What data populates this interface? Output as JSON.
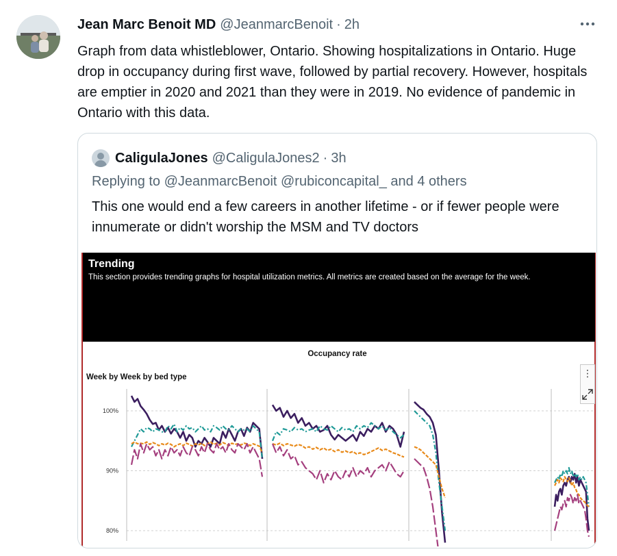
{
  "tweet": {
    "display_name": "Jean Marc Benoit MD",
    "handle": "@JeanmarcBenoit",
    "separator": "·",
    "time": "2h",
    "more_label": "•••",
    "text": "Graph from data whistleblower, Ontario. Showing hospitalizations in Ontario. Huge drop in occupancy during first wave, followed by partial recovery. However, hospitals are emptier in 2020 and 2021 than they were in 2019. No evidence of pandemic in Ontario with this data.",
    "avatar_icon": "profile-photo"
  },
  "quote": {
    "display_name": "CaligulaJones",
    "handle": "@CaligulaJones2",
    "separator": "·",
    "time": "3h",
    "replying_prefix": "Replying to ",
    "replying_to": "@JeanmarcBenoit @rubiconcapital_",
    "replying_suffix": " and 4 others",
    "text": "This one would end a few careers in another lifetime - or if fewer people were innumerate or didn't worship the MSM and TV doctors",
    "avatar_icon": "default-avatar-icon"
  },
  "media": {
    "banner_title": "Trending",
    "banner_desc": "This section provides trending graphs for hospital utilization metrics. All metrics are created based on the average for the week.",
    "chart_title": "Occupancy rate",
    "chart_subtitle": "Week by Week by bed type",
    "tool_kebab": "⋮",
    "expand_icon": "expand-icon"
  },
  "colors": {
    "series1": "#3b1e5f",
    "series2": "#1f9a97",
    "series3": "#e88a1a",
    "series4": "#a43f7e",
    "grid": "#cfcfcf"
  },
  "chart_data": {
    "type": "line",
    "title": "Occupancy rate",
    "subtitle": "Week by Week by bed type",
    "ytick_labels": [
      "100%",
      "90%",
      "80%"
    ],
    "yticks": [
      100,
      90,
      80
    ],
    "ylim": [
      78,
      103
    ],
    "panels": 4,
    "grid": true,
    "series": [
      {
        "color": "#3b1e5f",
        "panels": [
          [
            102.5,
            101.5,
            102,
            100.8,
            100.2,
            99.5,
            98.5,
            97.8,
            98,
            96.8,
            97.5,
            96.5,
            97.2,
            96.2,
            97,
            96.5,
            95.5,
            96.5,
            95,
            96,
            95.5,
            94,
            95,
            94.5,
            95.5,
            94.8,
            94,
            95.5,
            95,
            94.5,
            96.5,
            95.5,
            97,
            96,
            95,
            96.5,
            97,
            95.8,
            97.2,
            96.5,
            98,
            97.5,
            97,
            92
          ],
          [
            101,
            100,
            100.5,
            99,
            100,
            98.8,
            99.5,
            98,
            98.8,
            97.5,
            98,
            97,
            97.5,
            96.5,
            96.8,
            97.5,
            96,
            95.2,
            96,
            95.5,
            95,
            95.5,
            96,
            95,
            96.5,
            95.8,
            97,
            96.5,
            97.5,
            97,
            98,
            96.5,
            97.5,
            97,
            96,
            94,
            96.5
          ],
          [
            101.5,
            101,
            100.5,
            100.2,
            99.5,
            99,
            98,
            96,
            90,
            83,
            78
          ],
          [
            84,
            86,
            85,
            86.5,
            87,
            86,
            87.5,
            88,
            87.5,
            88.5,
            89,
            88,
            89,
            88.5,
            89.5,
            88,
            89,
            87.5,
            88.5,
            88,
            87.5,
            87,
            86.5,
            82,
            80
          ]
        ]
      },
      {
        "color": "#1f9a97",
        "panels": [
          [
            94,
            95,
            96,
            97,
            96.5,
            97.2,
            97,
            96.5,
            97,
            96.8,
            96.5,
            96.5,
            97.5,
            97,
            97.8,
            96.5,
            97.2,
            96.8,
            97.5,
            97,
            97.2,
            96.5,
            97,
            97.5,
            96.8,
            97,
            96.5,
            97.5,
            97.2,
            96.8,
            97.5,
            97,
            96.8,
            97.5,
            97,
            96.5,
            97,
            96.8,
            97,
            96.5,
            97.5,
            97,
            96.5,
            92
          ],
          [
            95,
            96.5,
            96,
            97,
            96.8,
            96.5,
            97.2,
            96.8,
            97,
            96.5,
            96.8,
            97,
            96.5,
            97.5,
            97,
            96.8,
            97.5,
            97,
            96.5,
            97.2,
            96.8,
            97,
            96.5,
            97.5,
            97,
            97.5,
            97.2,
            98,
            97.5,
            97,
            97.5,
            96.8,
            97.2,
            96.5,
            96,
            95.5,
            96
          ],
          [
            100,
            99.5,
            99,
            98.5,
            98,
            97.5,
            96,
            93,
            88,
            84,
            80
          ],
          [
            88,
            88.5,
            89,
            88.5,
            89.5,
            89,
            90,
            89.5,
            90,
            89.5,
            90.5,
            89.5,
            90,
            89,
            89.5,
            89,
            89.5,
            88.5,
            89,
            88.5,
            89,
            88.5,
            88,
            86,
            84
          ]
        ]
      },
      {
        "color": "#e88a1a",
        "panels": [
          [
            94.5,
            94.8,
            94.5,
            94.6,
            94.5,
            94.8,
            94.4,
            94.7,
            94.5,
            94.2,
            94.5,
            94.3,
            94.6,
            94.4,
            94,
            94.3,
            94.5,
            94.2,
            94.6,
            94.4,
            94.1,
            94.5,
            94.3,
            94.6,
            94.2,
            94.5,
            94.8,
            94.4,
            94.6,
            94.3,
            94.7,
            94.5,
            94.2,
            94.6,
            94.4,
            94.5,
            94.3,
            94.6,
            94.5,
            94.2,
            94.5,
            94.3,
            94.1,
            93
          ],
          [
            94.5,
            94.3,
            94.6,
            94.2,
            94.5,
            94.3,
            94.1,
            94.4,
            94.2,
            93.8,
            94,
            93.6,
            93.9,
            93.5,
            93.8,
            93.4,
            93.6,
            93.2,
            93.5,
            93.1,
            93.3,
            93,
            93.2,
            92.8,
            93,
            92.7,
            92.9,
            93.2,
            93.5,
            93.8,
            93.4,
            93.6,
            93.3,
            93,
            92.8,
            92.5,
            92.3
          ],
          [
            94,
            93.8,
            93.5,
            93,
            92.5,
            92,
            91.5,
            91,
            89,
            87,
            85.5
          ],
          [
            87.5,
            88,
            88.5,
            88,
            88.8,
            88.5,
            88.2,
            89,
            88.6,
            88.2,
            88.8,
            88.4,
            87.5,
            88,
            87.2,
            86.8,
            86.2,
            86,
            85.5,
            85.2,
            85,
            84.8,
            84.5,
            84.2,
            84
          ]
        ]
      },
      {
        "color": "#a43f7e",
        "panels": [
          [
            91,
            93.5,
            92,
            94.5,
            93,
            94.5,
            93.5,
            94,
            92.5,
            93.5,
            92,
            93.5,
            92.5,
            94,
            93,
            93.5,
            92.5,
            94,
            93,
            92.5,
            94,
            93.5,
            92.5,
            94,
            93,
            94.5,
            93.5,
            93,
            94.5,
            93.5,
            94,
            93,
            94.5,
            93.5,
            93,
            94.5,
            94,
            93.5,
            94.5,
            93,
            94,
            93,
            92,
            89
          ],
          [
            94.5,
            93,
            94,
            92.5,
            93.5,
            92,
            92.5,
            91,
            91.5,
            90.5,
            90,
            89.5,
            88.5,
            90,
            88,
            89.5,
            88.5,
            90,
            89,
            88.5,
            90,
            89,
            90.5,
            89,
            90,
            89.5,
            90.5,
            89,
            90,
            90.5,
            91,
            90,
            91.5,
            90.5,
            89.5,
            89,
            90
          ],
          [
            92,
            91.5,
            91,
            90.5,
            89,
            87,
            84,
            80,
            76,
            74,
            73
          ],
          [
            80,
            81,
            82,
            83,
            84,
            83.5,
            84.5,
            85,
            84,
            85.5,
            85,
            86,
            85.5,
            84.5,
            85.5,
            85,
            86,
            84.5,
            85,
            84.5,
            84,
            83.5,
            82,
            80,
            79
          ]
        ]
      }
    ]
  }
}
